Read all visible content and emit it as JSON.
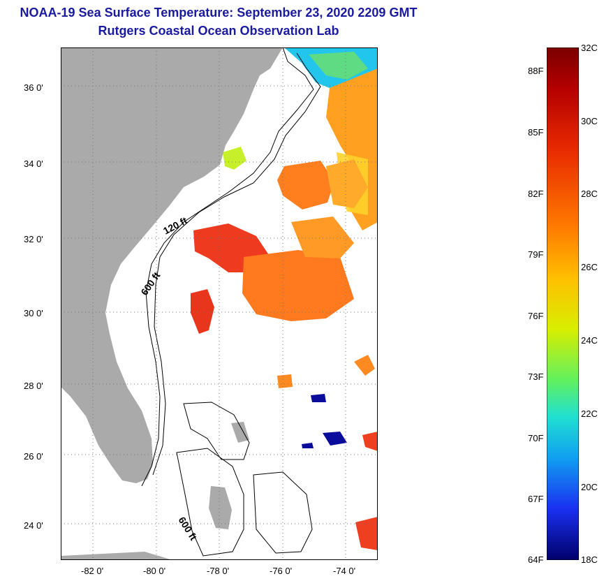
{
  "header": {
    "title": "NOAA-19 Sea Surface Temperature:  September 23, 2020 2209 GMT",
    "subtitle": "Rutgers Coastal Ocean Observation Lab"
  },
  "map": {
    "lat_labels": [
      "36 0'",
      "34 0'",
      "32 0'",
      "30 0'",
      "28 0'",
      "26 0'",
      "24 0'"
    ],
    "lon_labels": [
      "-82 0'",
      "-80 0'",
      "-78 0'",
      "-76 0'",
      "-74 0'"
    ],
    "contour_labels": [
      "120 ft",
      "600 ft",
      "600 ft"
    ]
  },
  "colorbar": {
    "fahrenheit_labels": [
      "88F",
      "85F",
      "82F",
      "79F",
      "76F",
      "73F",
      "70F",
      "67F",
      "64F"
    ],
    "celsius_labels": [
      "32C",
      "30C",
      "28C",
      "26C",
      "24C",
      "22C",
      "20C",
      "18C"
    ],
    "range_celsius": [
      18,
      32
    ]
  },
  "colors": {
    "title": "#1a1aa0",
    "land": "#aaaaaa",
    "hot": "#e63a1a",
    "warm": "#ff8c1e",
    "cool": "#20c8f0",
    "cold": "#0a0a9a"
  }
}
